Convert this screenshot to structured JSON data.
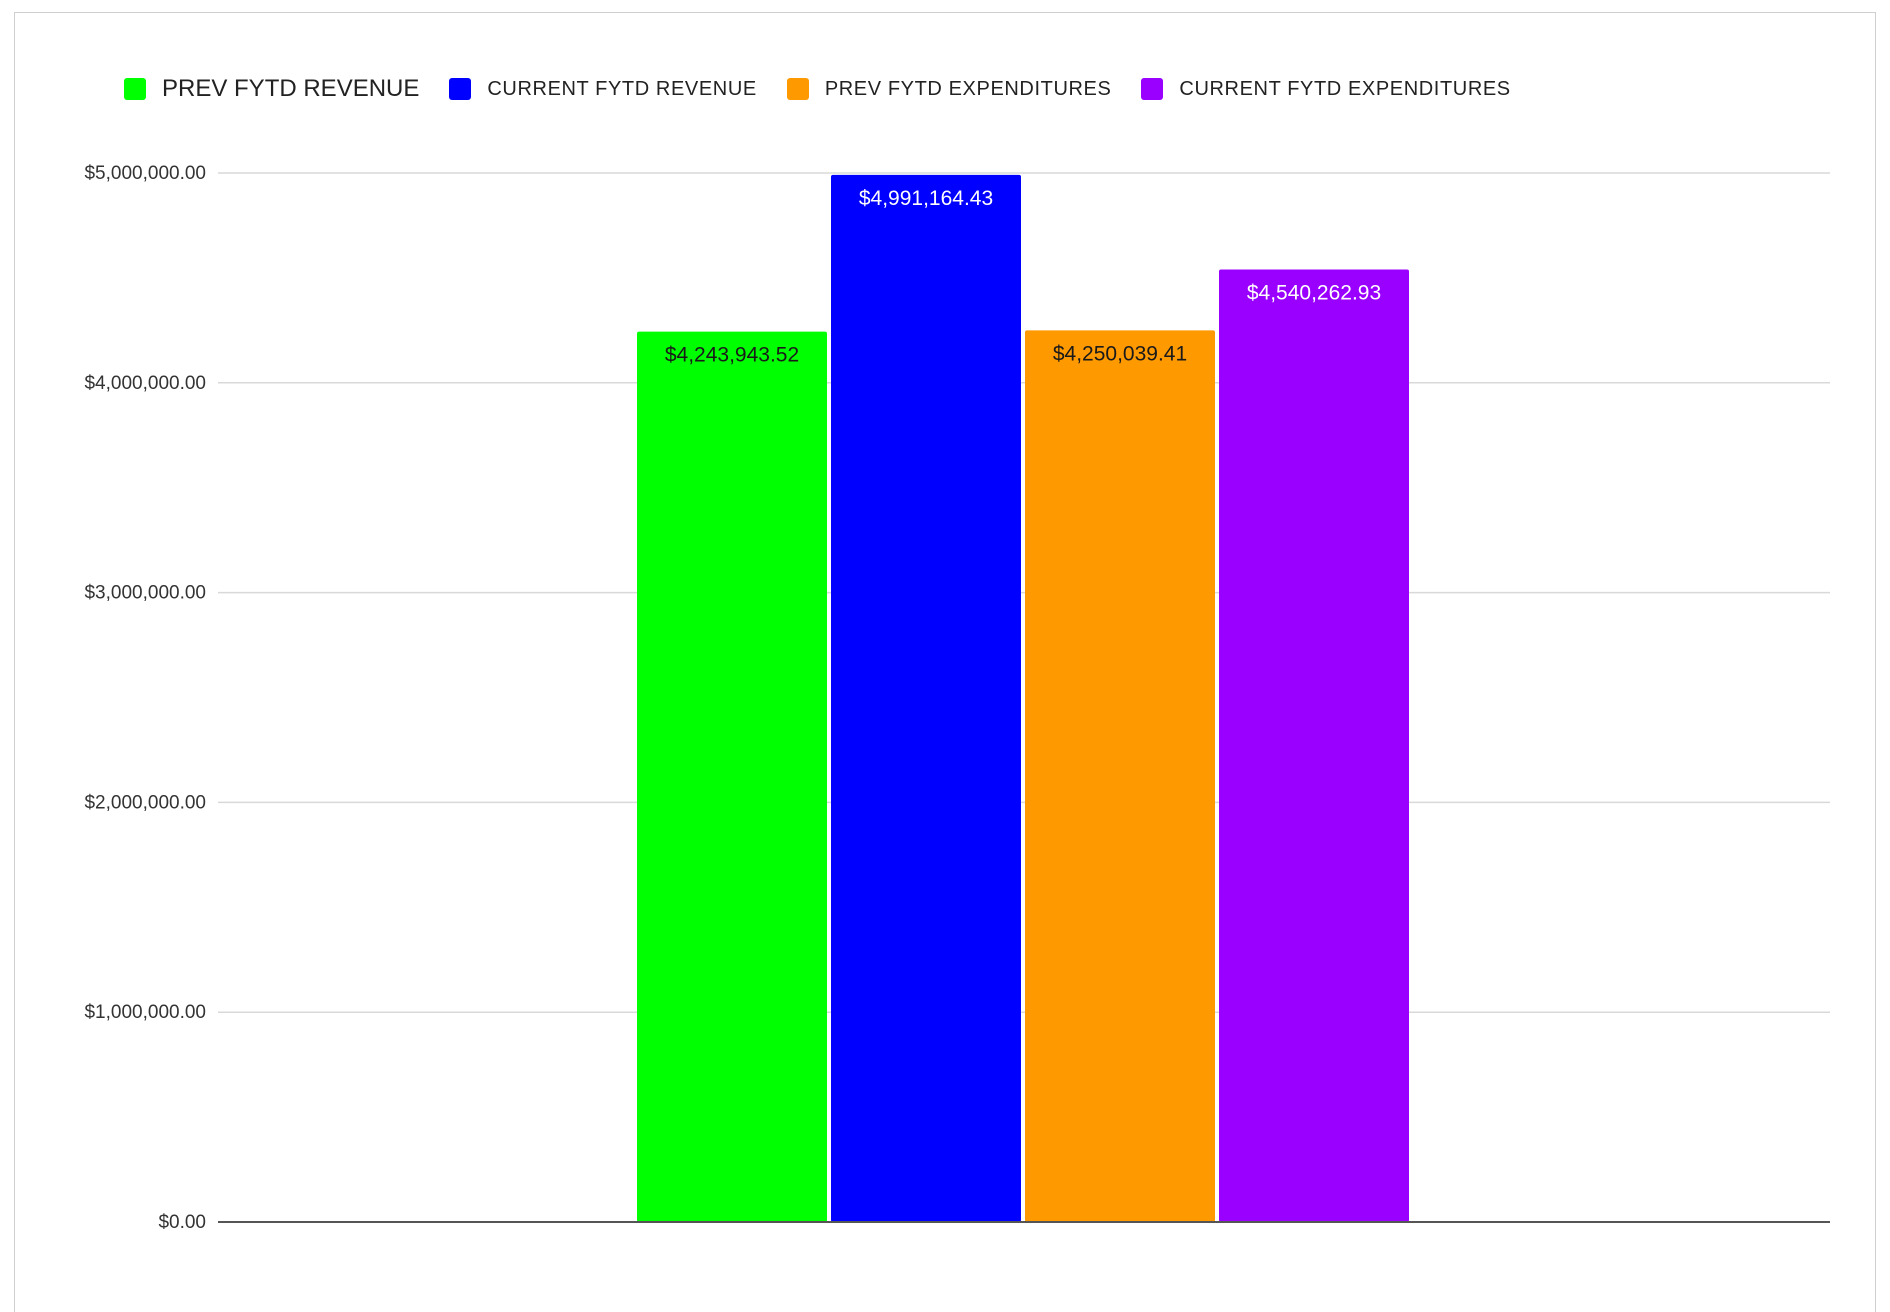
{
  "chart_data": {
    "type": "bar",
    "categories": [
      ""
    ],
    "series": [
      {
        "name": "PREV FYTD REVENUE",
        "values": [
          4243943.52
        ],
        "color": "#00ff00",
        "label": "$4,243,943.52",
        "label_color": "#1a1a1a"
      },
      {
        "name": "CURRENT FYTD REVENUE",
        "values": [
          4991164.43
        ],
        "color": "#0000ff",
        "label": "$4,991,164.43",
        "label_color": "#ffffff"
      },
      {
        "name": "PREV FYTD EXPENDITURES",
        "values": [
          4250039.41
        ],
        "color": "#ff9900",
        "label": "$4,250,039.41",
        "label_color": "#1a1a1a"
      },
      {
        "name": "CURRENT FYTD EXPENDITURES",
        "values": [
          4540262.93
        ],
        "color": "#9900ff",
        "label": "$4,540,262.93",
        "label_color": "#ffffff"
      }
    ],
    "title": "",
    "xlabel": "",
    "ylabel": "",
    "ylim": [
      0,
      5000000
    ],
    "yticks": [
      {
        "value": 0,
        "label": "$0.00"
      },
      {
        "value": 1000000,
        "label": "$1,000,000.00"
      },
      {
        "value": 2000000,
        "label": "$2,000,000.00"
      },
      {
        "value": 3000000,
        "label": "$3,000,000.00"
      },
      {
        "value": 4000000,
        "label": "$4,000,000.00"
      },
      {
        "value": 5000000,
        "label": "$5,000,000.00"
      }
    ],
    "grid": true,
    "legend": "top-left"
  }
}
